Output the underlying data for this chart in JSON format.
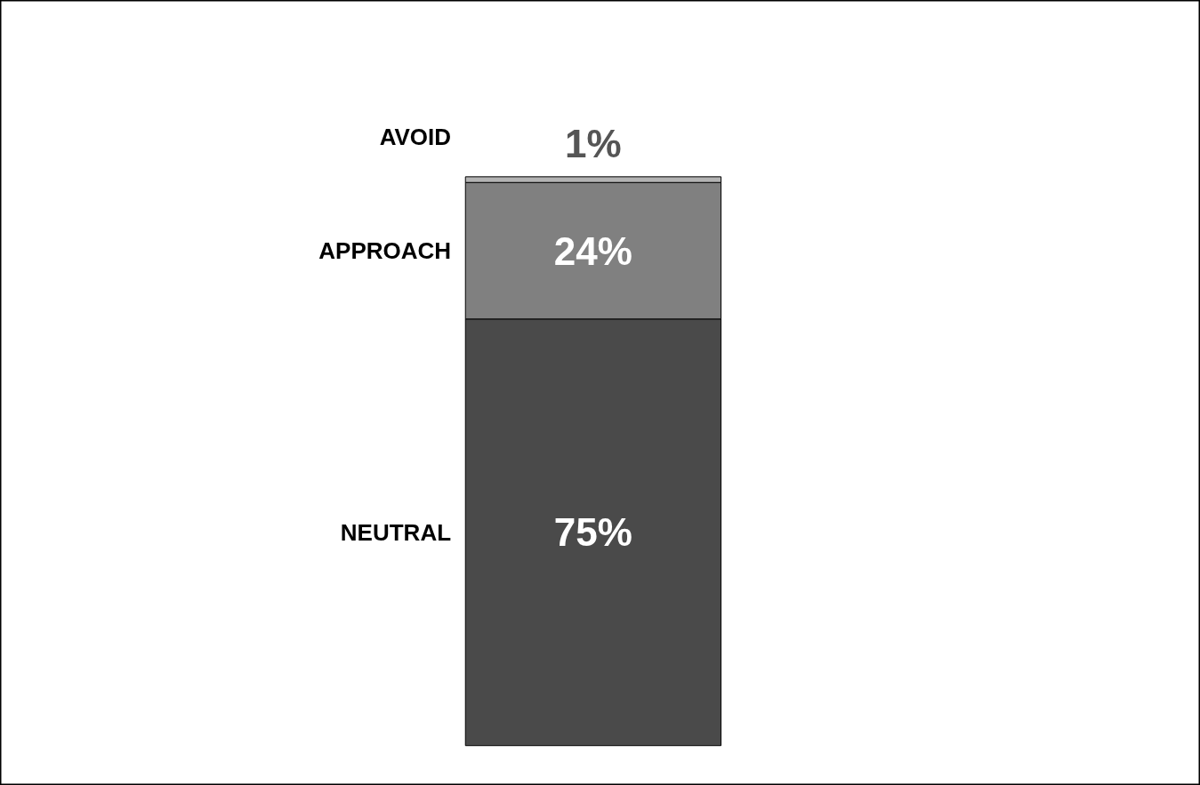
{
  "chart_data": {
    "type": "bar",
    "stacked": true,
    "categories": [
      null
    ],
    "series": [
      {
        "name": "NEUTRAL",
        "color": "#4a4a4a",
        "values": [
          75
        ],
        "value_labels": [
          "75%"
        ]
      },
      {
        "name": "APPROACH",
        "color": "#808080",
        "values": [
          24
        ],
        "value_labels": [
          "24%"
        ]
      },
      {
        "name": "AVOID",
        "color": "#b3b3b3",
        "values": [
          1
        ],
        "value_labels": [
          "1%"
        ]
      }
    ]
  }
}
